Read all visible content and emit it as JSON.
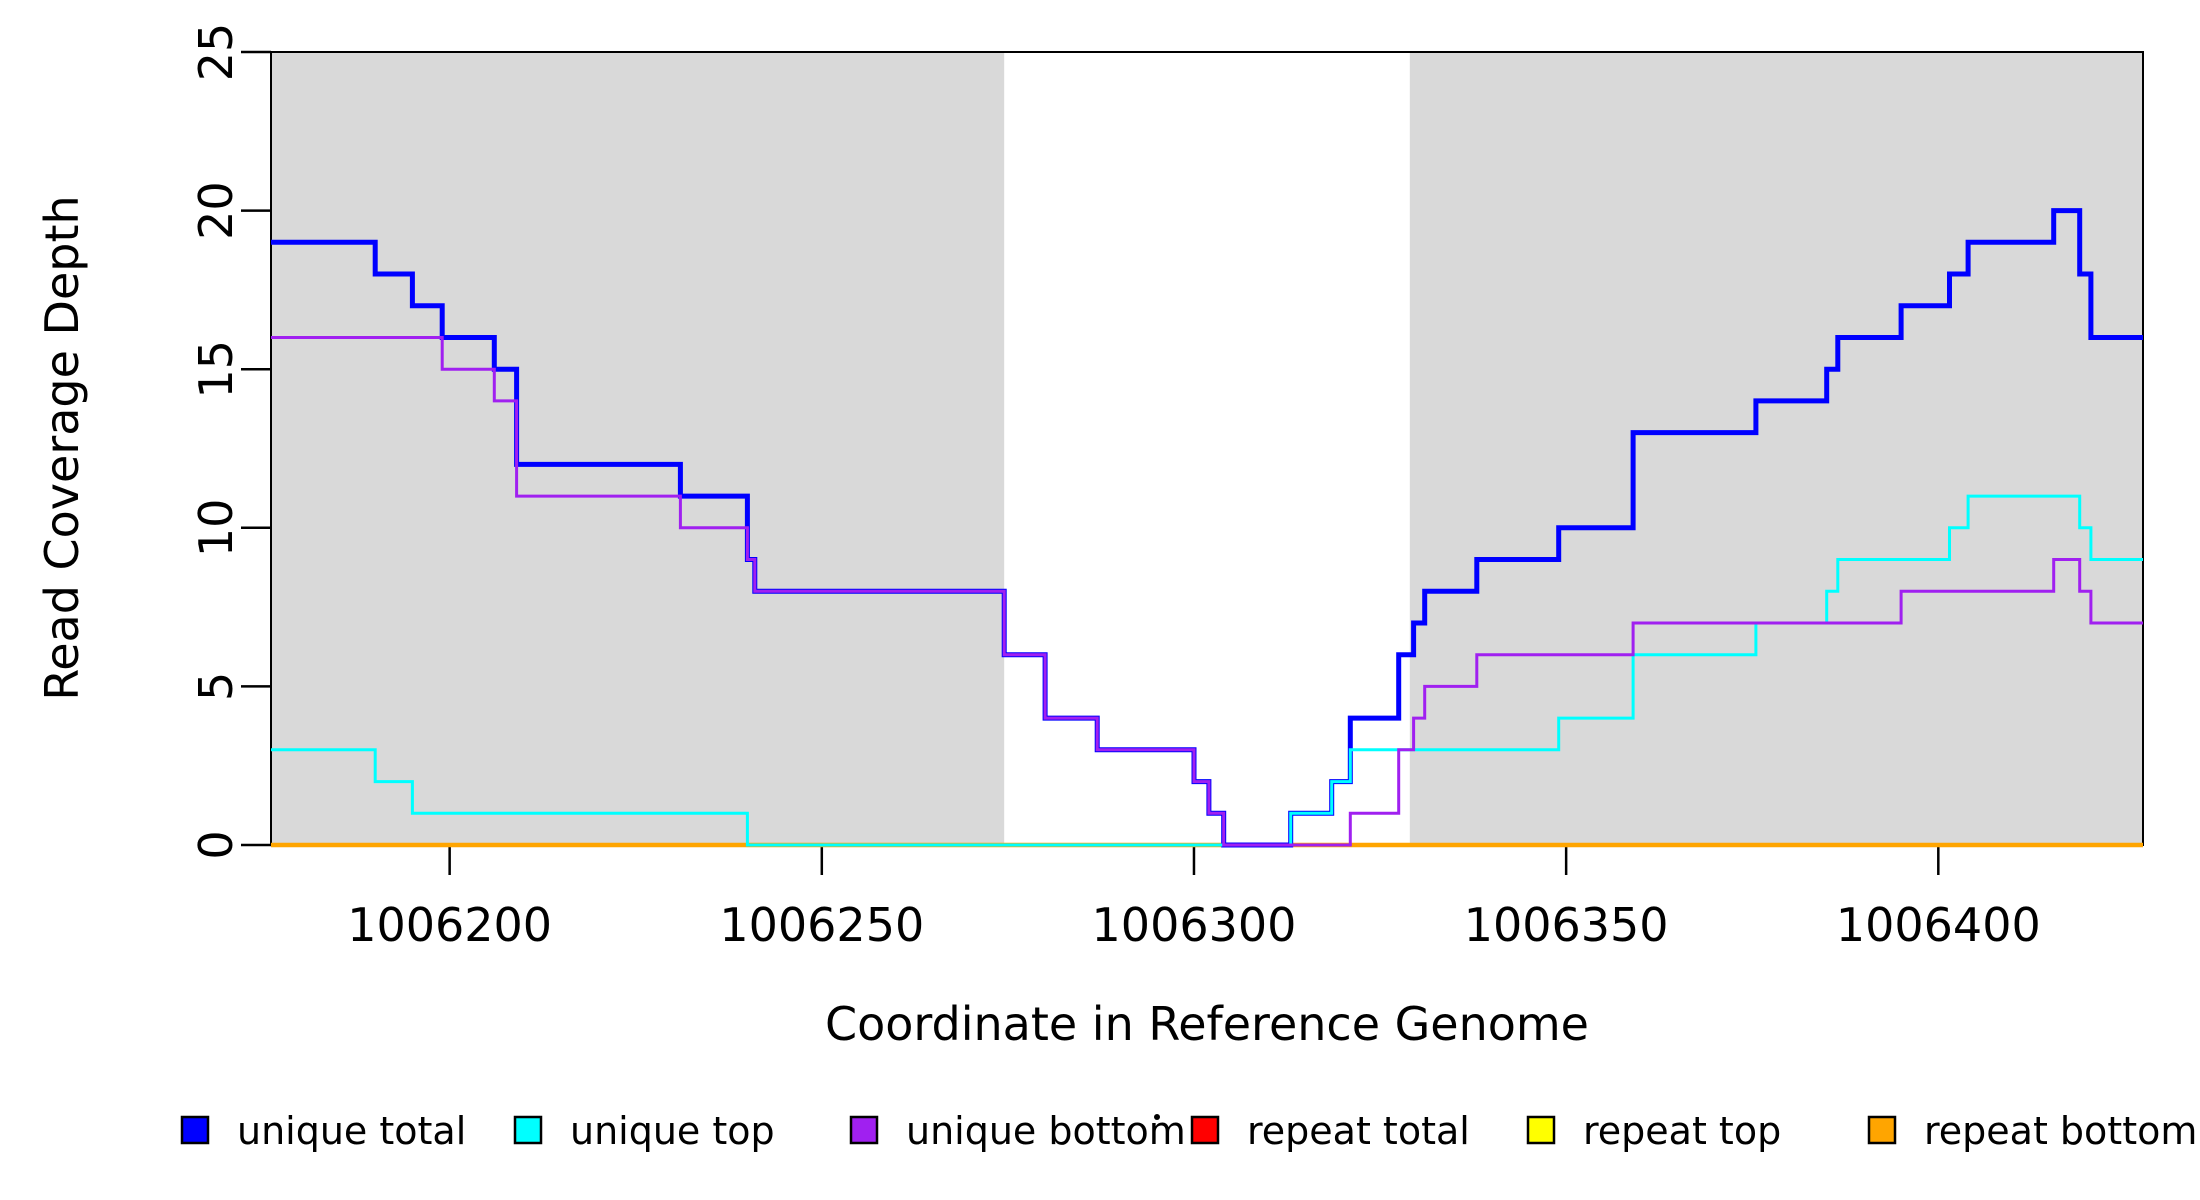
{
  "figure": {
    "background": "#ffffff",
    "plot_box_color": "#000000"
  },
  "chart_data": {
    "type": "line",
    "subtype": "step-coverage-plot",
    "title": "",
    "xlabel": "Coordinate in Reference Genome",
    "ylabel": "Read Coverage Depth",
    "xlim": [
      1006176,
      1006427.5
    ],
    "ylim": [
      0,
      25
    ],
    "xticks": [
      "1006200",
      "1006250",
      "1006300",
      "1006350",
      "1006400"
    ],
    "xtick_values": [
      1006200,
      1006250,
      1006300,
      1006350,
      1006400
    ],
    "yticks": [
      "0",
      "5",
      "10",
      "15",
      "20",
      "25"
    ],
    "ytick_values": [
      0,
      5,
      10,
      15,
      20,
      25
    ],
    "grid": false,
    "legend_position": "bottom-horizontal",
    "shaded_regions": {
      "color": "#d9d9d9",
      "ranges": [
        [
          1006176,
          1006274.5
        ],
        [
          1006329,
          1006427.5
        ]
      ]
    },
    "series": [
      {
        "name": "unique total",
        "color": "#0000FF",
        "line_width": 5,
        "segments": [
          [
            1006176,
            1006190,
            19
          ],
          [
            1006190,
            1006195,
            18
          ],
          [
            1006195,
            1006199,
            17
          ],
          [
            1006199,
            1006206,
            16
          ],
          [
            1006206,
            1006209,
            15
          ],
          [
            1006209,
            1006231,
            12
          ],
          [
            1006231,
            1006240,
            11
          ],
          [
            1006240,
            1006241,
            9
          ],
          [
            1006241,
            1006274.5,
            8
          ],
          [
            1006274.5,
            1006280,
            6
          ],
          [
            1006280,
            1006287,
            4
          ],
          [
            1006287,
            1006300,
            3
          ],
          [
            1006300,
            1006302,
            2
          ],
          [
            1006302,
            1006304,
            1
          ],
          [
            1006304,
            1006313,
            0
          ],
          [
            1006313,
            1006318.5,
            1
          ],
          [
            1006318.5,
            1006321,
            2
          ],
          [
            1006321,
            1006327.5,
            4
          ],
          [
            1006327.5,
            1006329.5,
            6
          ],
          [
            1006329.5,
            1006331,
            7
          ],
          [
            1006331,
            1006338,
            8
          ],
          [
            1006338,
            1006349,
            9
          ],
          [
            1006349,
            1006359,
            10
          ],
          [
            1006359,
            1006375.5,
            13
          ],
          [
            1006375.5,
            1006385,
            14
          ],
          [
            1006385,
            1006386.5,
            15
          ],
          [
            1006386.5,
            1006395,
            16
          ],
          [
            1006395,
            1006401.5,
            17
          ],
          [
            1006401.5,
            1006404,
            18
          ],
          [
            1006404,
            1006415.5,
            19
          ],
          [
            1006415.5,
            1006419,
            20
          ],
          [
            1006419,
            1006420.5,
            18
          ],
          [
            1006420.5,
            1006427.5,
            16
          ]
        ]
      },
      {
        "name": "unique top",
        "color": "#00FFFF",
        "line_width": 3,
        "segments": [
          [
            1006176,
            1006190,
            3
          ],
          [
            1006190,
            1006195,
            2
          ],
          [
            1006195,
            1006240,
            1
          ],
          [
            1006240,
            1006313,
            0
          ],
          [
            1006313,
            1006318.5,
            1
          ],
          [
            1006318.5,
            1006321,
            2
          ],
          [
            1006321,
            1006349,
            3
          ],
          [
            1006349,
            1006359,
            4
          ],
          [
            1006359,
            1006375.5,
            6
          ],
          [
            1006375.5,
            1006385,
            7
          ],
          [
            1006385,
            1006386.5,
            8
          ],
          [
            1006386.5,
            1006401.5,
            9
          ],
          [
            1006401.5,
            1006404,
            10
          ],
          [
            1006404,
            1006419,
            11
          ],
          [
            1006419,
            1006420.5,
            10
          ],
          [
            1006420.5,
            1006427.5,
            9
          ]
        ]
      },
      {
        "name": "unique bottom",
        "color": "#A020F0",
        "line_width": 3,
        "segments": [
          [
            1006176,
            1006199,
            16
          ],
          [
            1006199,
            1006206,
            15
          ],
          [
            1006206,
            1006209,
            14
          ],
          [
            1006209,
            1006231,
            11
          ],
          [
            1006231,
            1006240,
            10
          ],
          [
            1006240,
            1006241,
            9
          ],
          [
            1006241,
            1006274.5,
            8
          ],
          [
            1006274.5,
            1006280,
            6
          ],
          [
            1006280,
            1006287,
            4
          ],
          [
            1006287,
            1006300,
            3
          ],
          [
            1006300,
            1006302,
            2
          ],
          [
            1006302,
            1006304,
            1
          ],
          [
            1006304,
            1006321,
            0
          ],
          [
            1006321,
            1006327.5,
            1
          ],
          [
            1006327.5,
            1006329.5,
            3
          ],
          [
            1006329.5,
            1006331,
            4
          ],
          [
            1006331,
            1006338,
            5
          ],
          [
            1006338,
            1006359,
            6
          ],
          [
            1006359,
            1006395,
            7
          ],
          [
            1006395,
            1006415.5,
            8
          ],
          [
            1006415.5,
            1006419,
            9
          ],
          [
            1006419,
            1006420.5,
            8
          ],
          [
            1006420.5,
            1006427.5,
            7
          ]
        ]
      },
      {
        "name": "repeat total",
        "color": "#FF0000",
        "line_width": 3,
        "segments": [
          [
            1006176,
            1006427.5,
            0
          ]
        ]
      },
      {
        "name": "repeat top",
        "color": "#FFFF00",
        "line_width": 3,
        "segments": [
          [
            1006176,
            1006427.5,
            0
          ]
        ]
      },
      {
        "name": "repeat bottom",
        "color": "#FFA500",
        "line_width": 4.5,
        "segments": [
          [
            1006176,
            1006427.5,
            0
          ]
        ]
      }
    ],
    "legend": {
      "items": [
        {
          "label": "unique total",
          "color": "#0000FF"
        },
        {
          "label": "unique top",
          "color": "#00FFFF"
        },
        {
          "label": "unique bottom",
          "color": "#A020F0"
        },
        {
          "label": "repeat total",
          "color": "#FF0000"
        },
        {
          "label": "repeat top",
          "color": "#FFFF00"
        },
        {
          "label": "repeat bottom",
          "color": "#FFA500"
        }
      ]
    }
  }
}
